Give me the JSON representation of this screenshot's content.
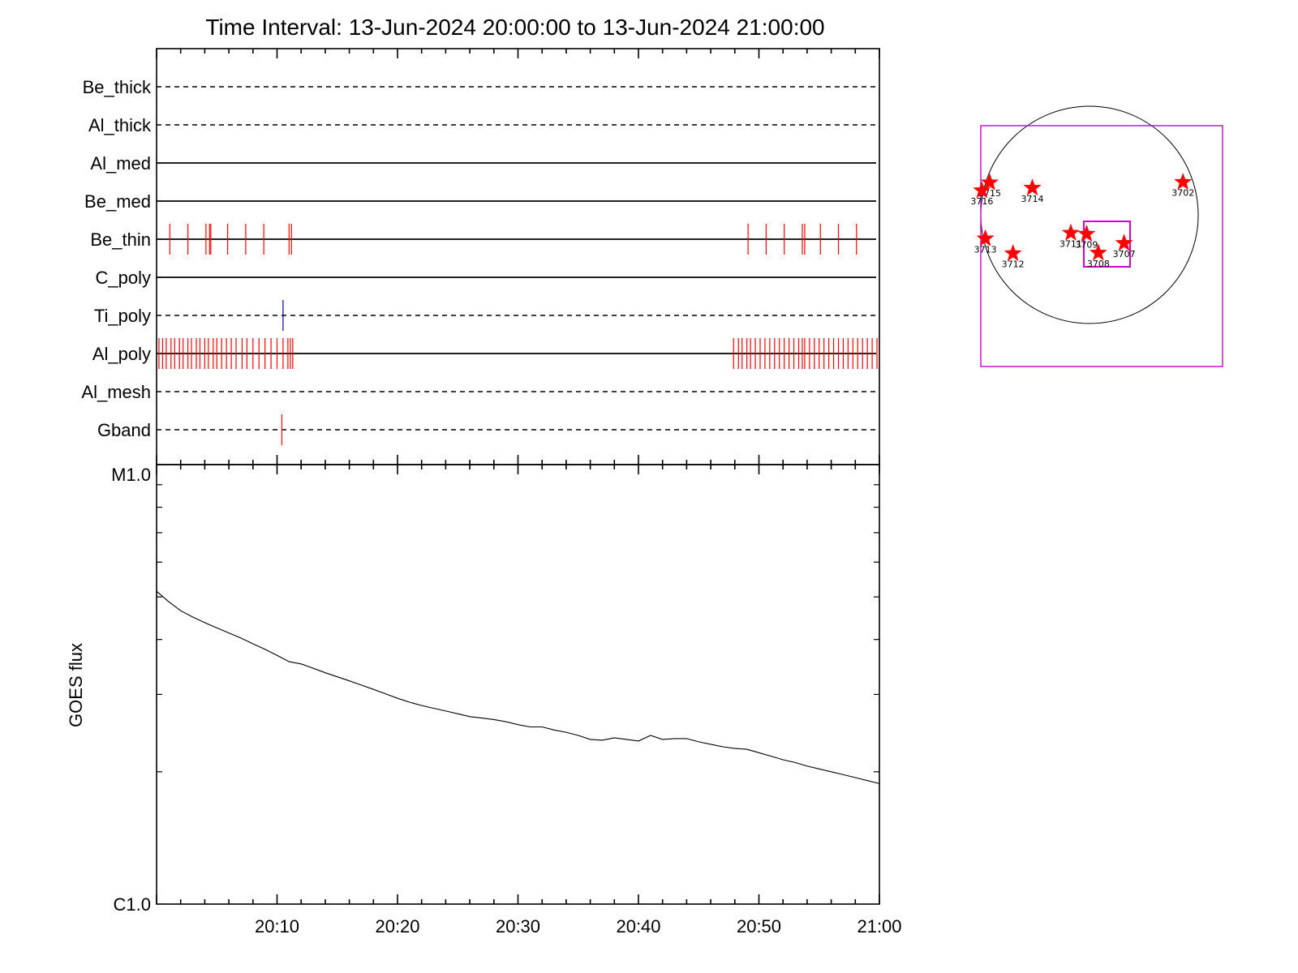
{
  "title": "Time Interval: 13-Jun-2024 20:00:00 to 13-Jun-2024 21:00:00",
  "colors": {
    "axis": "#000000",
    "event_red": "#ff0000",
    "event_blue": "#0000a0",
    "fov_box": "#cc00cc",
    "star": "#ff0000"
  },
  "chart_data": [
    {
      "type": "event-raster",
      "x_unit": "minutes after 20:00",
      "xlim": [
        0,
        60
      ],
      "filters": [
        {
          "name": "Be_thick",
          "line_style": "dashed",
          "events": []
        },
        {
          "name": "Al_thick",
          "line_style": "dashed",
          "events": []
        },
        {
          "name": "Al_med",
          "line_style": "solid",
          "events": []
        },
        {
          "name": "Be_med",
          "line_style": "solid",
          "events": []
        },
        {
          "name": "Be_thin",
          "line_style": "solid",
          "event_color": "red",
          "events": [
            1.1,
            2.6,
            4.1,
            4.4,
            4.5,
            5.9,
            7.4,
            8.9,
            11.0,
            11.2,
            49.1,
            50.6,
            52.1,
            53.6,
            53.8,
            55.1,
            56.6,
            58.1
          ]
        },
        {
          "name": "C_poly",
          "line_style": "solid",
          "events": []
        },
        {
          "name": "Ti_poly",
          "line_style": "dashed",
          "event_color": "blue",
          "events": [
            10.5
          ]
        },
        {
          "name": "Al_poly",
          "line_style": "solid",
          "event_color": "red",
          "events": [
            0.2,
            0.5,
            0.8,
            1.2,
            1.5,
            1.9,
            2.2,
            2.6,
            2.9,
            3.3,
            3.6,
            4.0,
            4.3,
            4.7,
            5.0,
            5.4,
            5.8,
            6.2,
            6.6,
            7.1,
            7.5,
            8.0,
            8.5,
            9.0,
            9.5,
            10.0,
            10.5,
            10.9,
            11.1,
            11.3,
            47.9,
            48.3,
            48.6,
            49.0,
            49.3,
            49.7,
            50.1,
            50.5,
            50.9,
            51.3,
            51.7,
            52.1,
            52.5,
            52.9,
            53.3,
            53.6,
            53.8,
            54.2,
            54.6,
            55.0,
            55.4,
            55.8,
            56.2,
            56.6,
            57.0,
            57.4,
            57.8,
            58.2,
            58.6,
            59.0,
            59.4,
            59.8
          ]
        },
        {
          "name": "Al_mesh",
          "line_style": "dashed",
          "events": []
        },
        {
          "name": "Gband",
          "line_style": "dashed",
          "event_color": "red",
          "events": [
            10.4
          ]
        }
      ]
    },
    {
      "type": "line",
      "ylabel": "GOES flux",
      "y_scale": "log",
      "ylim": [
        1e-06,
        1e-05
      ],
      "y_tick_labels": [
        {
          "value": 1e-05,
          "label": "M1.0"
        },
        {
          "value": 1e-06,
          "label": "C1.0"
        }
      ],
      "x_unit": "minutes after 20:00",
      "xlim": [
        0,
        60
      ],
      "x_tick_labels": [
        {
          "value": 10,
          "label": "20:10"
        },
        {
          "value": 20,
          "label": "20:20"
        },
        {
          "value": 30,
          "label": "20:30"
        },
        {
          "value": 40,
          "label": "20:40"
        },
        {
          "value": 50,
          "label": "20:50"
        },
        {
          "value": 60,
          "label": "21:00"
        }
      ],
      "series": [
        {
          "x": [
            0,
            1,
            2,
            3,
            4,
            5,
            6,
            7,
            8,
            9,
            10,
            11,
            12,
            13,
            14,
            15,
            16,
            17,
            18,
            19,
            20,
            21,
            22,
            23,
            24,
            25,
            26,
            27,
            28,
            29,
            30,
            31,
            32,
            33,
            34,
            35,
            36,
            37,
            38,
            39,
            40,
            41,
            42,
            43,
            44,
            45,
            46,
            47,
            48,
            49,
            50,
            51,
            52,
            53,
            54,
            55,
            56,
            57,
            58,
            59,
            60
          ],
          "y": [
            5.15e-06,
            4.88e-06,
            4.65e-06,
            4.5e-06,
            4.37e-06,
            4.25e-06,
            4.14e-06,
            4.03e-06,
            3.91e-06,
            3.8e-06,
            3.68e-06,
            3.56e-06,
            3.52e-06,
            3.44e-06,
            3.36e-06,
            3.29e-06,
            3.22e-06,
            3.15e-06,
            3.08e-06,
            3.01e-06,
            2.94e-06,
            2.88e-06,
            2.83e-06,
            2.79e-06,
            2.75e-06,
            2.71e-06,
            2.67e-06,
            2.65e-06,
            2.63e-06,
            2.6e-06,
            2.56e-06,
            2.53e-06,
            2.53e-06,
            2.49e-06,
            2.46e-06,
            2.42e-06,
            2.37e-06,
            2.36e-06,
            2.39e-06,
            2.37e-06,
            2.35e-06,
            2.42e-06,
            2.37e-06,
            2.38e-06,
            2.38e-06,
            2.34e-06,
            2.31e-06,
            2.28e-06,
            2.26e-06,
            2.25e-06,
            2.21e-06,
            2.17e-06,
            2.13e-06,
            2.1e-06,
            2.06e-06,
            2.03e-06,
            2e-06,
            1.97e-06,
            1.94e-06,
            1.91e-06,
            1.88e-06
          ]
        }
      ]
    },
    {
      "type": "scatter",
      "markers": "star",
      "points": [
        {
          "label": "3715",
          "x": -918,
          "y": 297
        },
        {
          "label": "3716",
          "x": -990,
          "y": 224
        },
        {
          "label": "3714",
          "x": -526,
          "y": 248
        },
        {
          "label": "3702",
          "x": 860,
          "y": 301
        },
        {
          "label": "3713",
          "x": -958,
          "y": -219
        },
        {
          "label": "3711",
          "x": -172,
          "y": -167
        },
        {
          "label": "3709",
          "x": -27,
          "y": -176
        },
        {
          "label": "3707",
          "x": 318,
          "y": -261
        },
        {
          "label": "3708",
          "x": 81,
          "y": -350
        },
        {
          "label": "3712",
          "x": -704,
          "y": -355
        }
      ]
    }
  ]
}
